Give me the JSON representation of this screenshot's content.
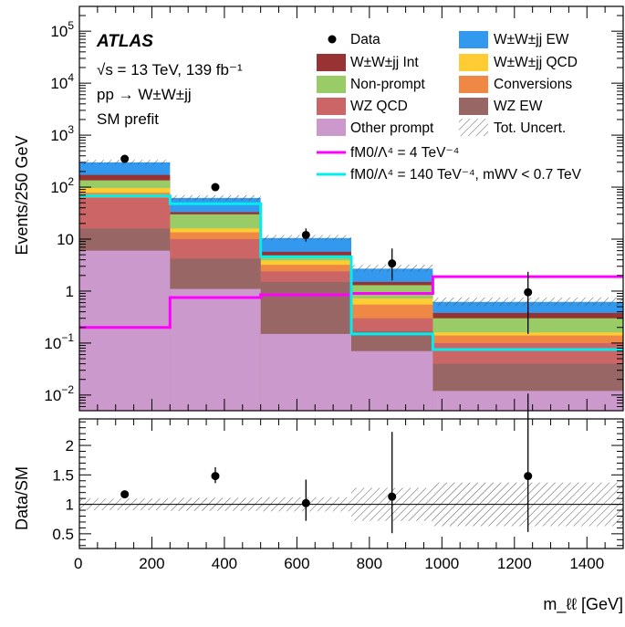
{
  "colors": {
    "other_prompt": "#cc99cc",
    "wz_ew": "#996666",
    "wz_qcd": "#cc6666",
    "conversions": "#ee8844",
    "wwjj_qcd": "#ffcc33",
    "non_prompt": "#99cc66",
    "wwjj_int": "#993333",
    "wwjj_ew": "#3399ee",
    "fm0_4": "#ff00ff",
    "fm0_140": "#00eeee",
    "data": "#000000",
    "ratio_line": "#000000"
  },
  "atlas": {
    "label": "ATLAS",
    "energy_line": "√s = 13 TeV, 139 fb⁻¹",
    "process_line": "pp → W±W±jj",
    "fit_line": "SM prefit"
  },
  "legend": {
    "data": "Data",
    "wwjj_ew": "W±W±jj EW",
    "wwjj_int": "W±W±jj Int",
    "wwjj_qcd": "W±W±jj QCD",
    "non_prompt": "Non-prompt",
    "conversions": "Conversions",
    "wz_qcd": "WZ QCD",
    "wz_ew": "WZ EW",
    "other_prompt": "Other prompt",
    "tot_uncert": "Tot. Uncert.",
    "fm0_4": "fM0/Λ⁴ = 4 TeV⁻⁴",
    "fm0_140": "fM0/Λ⁴ = 140 TeV⁻⁴, mWV < 0.7 TeV"
  },
  "chart_data": [
    {
      "type": "bar",
      "stacked": true,
      "yscale": "log",
      "ylabel": "Events/250 GeV",
      "xlabel": "m_ℓℓ [GeV]",
      "xlim": [
        0,
        1500
      ],
      "ylim": [
        0.005,
        300000
      ],
      "bin_edges": [
        0,
        250,
        500,
        750,
        975,
        1500
      ],
      "stack_order_bottom_to_top": [
        "other_prompt",
        "wz_ew",
        "wz_qcd",
        "conversions",
        "wwjj_qcd",
        "non_prompt",
        "wwjj_int",
        "wwjj_ew"
      ],
      "stack_tops": {
        "other_prompt": [
          6,
          1.1,
          0.15,
          0.07,
          0.012
        ],
        "wz_ew": [
          16,
          4.2,
          1.5,
          0.17,
          0.04
        ],
        "wz_qcd": [
          62,
          10,
          2.4,
          0.3,
          0.1
        ],
        "conversions": [
          78,
          13.5,
          3.2,
          0.55,
          0.14
        ],
        "wwjj_qcd": [
          96,
          16,
          3.9,
          0.72,
          0.16
        ],
        "non_prompt": [
          135,
          30,
          4.8,
          1.3,
          0.3
        ],
        "wwjj_int": [
          172,
          33,
          5.7,
          1.5,
          0.38
        ],
        "wwjj_ew": [
          300,
          62,
          10.5,
          2.7,
          0.62
        ]
      },
      "uncertainty_band": {
        "lower": [
          270,
          55,
          9.5,
          2.4,
          0.52
        ],
        "upper": [
          335,
          70,
          12,
          3.2,
          0.75
        ]
      },
      "bsm_lines": [
        {
          "key": "fm0_4",
          "values": [
            0.2,
            0.75,
            0.85,
            0.9,
            1.9
          ]
        },
        {
          "key": "fm0_140",
          "values": [
            68,
            48,
            4.6,
            0.15,
            0.075
          ]
        }
      ],
      "data_points": {
        "x": [
          125,
          375,
          625,
          862.5,
          1237.5
        ],
        "y": [
          350,
          100,
          12,
          3.4,
          0.95
        ],
        "yerr_low": [
          20,
          10,
          3,
          1.8,
          0.8
        ],
        "yerr_high": [
          20,
          10,
          4,
          3.2,
          1.4
        ]
      },
      "x_ticks": [
        0,
        200,
        400,
        600,
        800,
        1000,
        1200,
        1400
      ],
      "y_tick_labels": [
        {
          "v": 0.01,
          "base": "10",
          "exp": "−2"
        },
        {
          "v": 0.1,
          "base": "10",
          "exp": "−1"
        },
        {
          "v": 1,
          "base": "1",
          "exp": ""
        },
        {
          "v": 10,
          "base": "10",
          "exp": ""
        },
        {
          "v": 100,
          "base": "10",
          "exp": "2"
        },
        {
          "v": 1000,
          "base": "10",
          "exp": "3"
        },
        {
          "v": 10000,
          "base": "10",
          "exp": "4"
        },
        {
          "v": 100000,
          "base": "10",
          "exp": "5"
        }
      ]
    },
    {
      "type": "scatter",
      "ylabel": "Data/SM",
      "xlabel": "m_ℓℓ [GeV]",
      "xlim": [
        0,
        1500
      ],
      "ylim": [
        0.25,
        2.45
      ],
      "bin_edges": [
        0,
        250,
        500,
        750,
        975,
        1500
      ],
      "reference_line": 1,
      "uncertainty_band": {
        "lower": [
          0.9,
          0.89,
          0.88,
          0.72,
          0.63
        ],
        "upper": [
          1.1,
          1.11,
          1.12,
          1.28,
          1.37
        ]
      },
      "points": {
        "x": [
          125,
          375,
          625,
          862.5,
          1237.5
        ],
        "y": [
          1.17,
          1.48,
          1.02,
          1.13,
          1.48
        ],
        "yerr_low": [
          0.05,
          0.12,
          0.3,
          0.62,
          0.95
        ],
        "yerr_high": [
          0.05,
          0.15,
          0.4,
          1.1,
          1.4
        ]
      },
      "y_ticks": [
        "0.5",
        "1",
        "1.5",
        "2"
      ],
      "x_ticks": [
        0,
        200,
        400,
        600,
        800,
        1000,
        1200,
        1400
      ]
    }
  ]
}
